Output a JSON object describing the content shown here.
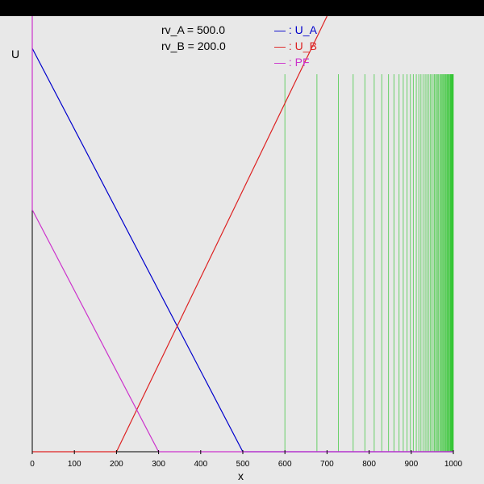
{
  "annotations": {
    "rv_a_label": "rv_A = 500.0",
    "rv_b_label": "rv_B = 200.0"
  },
  "colors": {
    "background": "#e8e8e8",
    "top_bar": "#000000",
    "u_a": "#0000cc",
    "u_b": "#dd2222",
    "pf": "#cc33cc",
    "green_lines": "#00bb00"
  },
  "chart_data": {
    "type": "line",
    "title": "",
    "xlabel": "x",
    "ylabel": "U",
    "xlim": [
      0,
      1000
    ],
    "x_ticks": [
      0,
      100,
      200,
      300,
      400,
      500,
      600,
      700,
      800,
      900,
      1000
    ],
    "grid": false,
    "legend_placement": "top",
    "legend": [
      {
        "marker": "— ",
        "name": ": U_A"
      },
      {
        "marker": "— ",
        "name": ": U_B"
      },
      {
        "marker": "— ",
        "name": ": PF"
      }
    ],
    "series": [
      {
        "name": "U_A",
        "x": [
          0,
          500,
          1000
        ],
        "y": [
          1.0,
          0.0,
          0.0
        ]
      },
      {
        "name": "U_B",
        "x": [
          0,
          200,
          700
        ],
        "y": [
          0.0,
          0.0,
          1.15
        ]
      },
      {
        "name": "PF",
        "x": [
          0,
          0,
          300,
          1000
        ],
        "y": [
          1.2,
          0.6,
          0.0,
          0.0
        ]
      }
    ],
    "y_max": 1.2,
    "vertical_lines_x": [
      600,
      676,
      727,
      762,
      790,
      812,
      830,
      846,
      859,
      871,
      881,
      890,
      898,
      905,
      912,
      918,
      923,
      928,
      933,
      937,
      941,
      945,
      948,
      952,
      955,
      958,
      960,
      963,
      965,
      968,
      970,
      972,
      974,
      976,
      978,
      980,
      982,
      983,
      985,
      986,
      988,
      989,
      990,
      992,
      993,
      994,
      995,
      996,
      997,
      998,
      999,
      1000
    ],
    "vertical_lines_top_value": 1.0
  }
}
